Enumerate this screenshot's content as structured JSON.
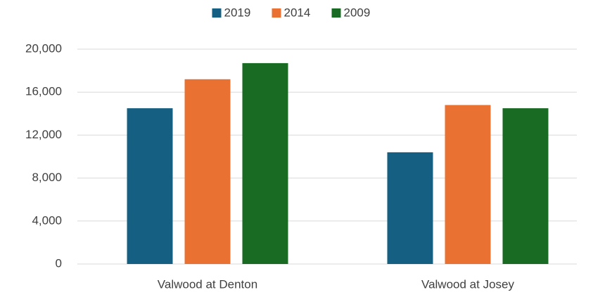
{
  "chart_data": {
    "type": "bar",
    "categories": [
      "Valwood at Denton",
      "Valwood at Josey"
    ],
    "series": [
      {
        "name": "2019",
        "color": "#156082",
        "values": [
          14500,
          10400
        ]
      },
      {
        "name": "2014",
        "color": "#e97132",
        "values": [
          17200,
          14800
        ]
      },
      {
        "name": "2009",
        "color": "#196b24",
        "values": [
          18700,
          14500
        ]
      }
    ],
    "ylim": [
      0,
      20000
    ],
    "yticks": [
      0,
      {
        "value": 4000,
        "label": "4,000"
      },
      {
        "value": 8000,
        "label": "8,000"
      },
      {
        "value": 12000,
        "label": "12,000"
      },
      {
        "value": 16000,
        "label": "16,000"
      },
      {
        "value": 20000,
        "label": "20,000"
      }
    ],
    "grid": true,
    "legend": "top"
  }
}
